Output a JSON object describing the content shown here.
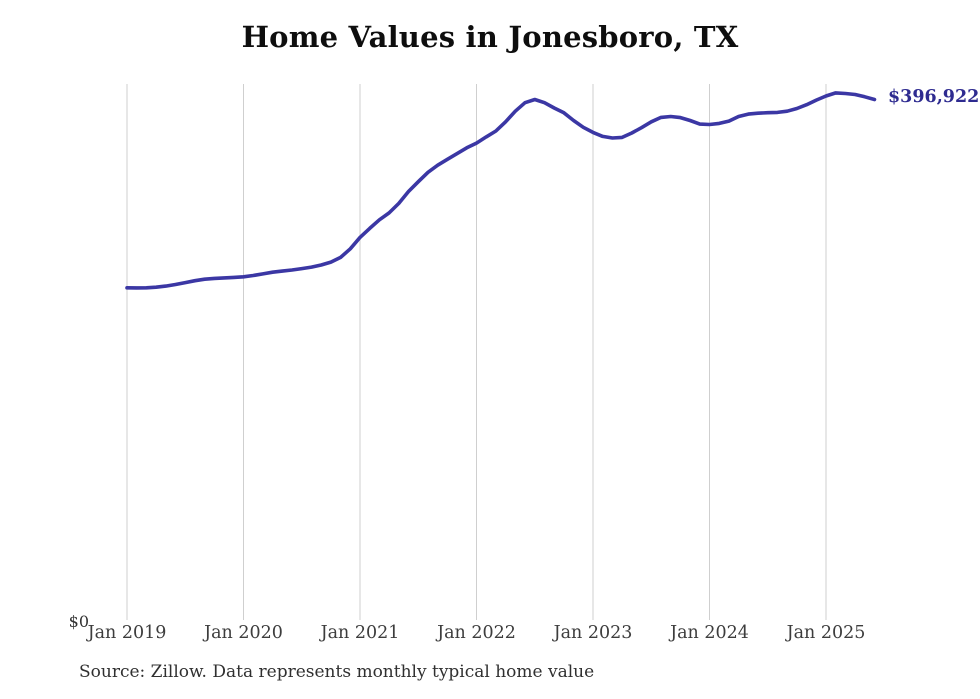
{
  "footer": {
    "source_note": "Source: Zillow. Data represents monthly typical home value"
  },
  "colors": {
    "background": "#ffffff",
    "line": "#3b37a4",
    "end_label": "#2e2b90",
    "gridline": "#cfcfcf",
    "tick_text": "#3d3d3d",
    "title_text": "#0e0e0e"
  },
  "chart_data": {
    "type": "line",
    "title": "Home Values in Jonesboro, TX",
    "xlabel": "",
    "ylabel": "",
    "grid": "vertical-only",
    "legend": "none",
    "line_color": "#3b37a4",
    "gridline_color": "#cfcfcf",
    "end_label": "$396,922",
    "final_value": 396922,
    "y_axis": {
      "min": 0,
      "max": 410000,
      "min_label": "$0"
    },
    "x_tick_labels": [
      "Jan 2019",
      "Jan 2020",
      "Jan 2021",
      "Jan 2022",
      "Jan 2023",
      "Jan 2024",
      "Jan 2025"
    ],
    "x_tick_month_indices": [
      0,
      12,
      24,
      36,
      48,
      60,
      72
    ],
    "x": [
      "Jan 2019",
      "Feb 2019",
      "Mar 2019",
      "Apr 2019",
      "May 2019",
      "Jun 2019",
      "Jul 2019",
      "Aug 2019",
      "Sep 2019",
      "Oct 2019",
      "Nov 2019",
      "Dec 2019",
      "Jan 2020",
      "Feb 2020",
      "Mar 2020",
      "Apr 2020",
      "May 2020",
      "Jun 2020",
      "Jul 2020",
      "Aug 2020",
      "Sep 2020",
      "Oct 2020",
      "Nov 2020",
      "Dec 2020",
      "Jan 2021",
      "Feb 2021",
      "Mar 2021",
      "Apr 2021",
      "May 2021",
      "Jun 2021",
      "Jul 2021",
      "Aug 2021",
      "Sep 2021",
      "Oct 2021",
      "Nov 2021",
      "Dec 2021",
      "Jan 2022",
      "Feb 2022",
      "Mar 2022",
      "Apr 2022",
      "May 2022",
      "Jun 2022",
      "Jul 2022",
      "Aug 2022",
      "Sep 2022",
      "Oct 2022",
      "Nov 2022",
      "Dec 2022",
      "Jan 2023",
      "Feb 2023",
      "Mar 2023",
      "Apr 2023",
      "May 2023",
      "Jun 2023",
      "Jul 2023",
      "Aug 2023",
      "Sep 2023",
      "Oct 2023",
      "Nov 2023",
      "Dec 2023",
      "Jan 2024",
      "Feb 2024",
      "Mar 2024",
      "Apr 2024",
      "May 2024",
      "Jun 2024",
      "Jul 2024",
      "Aug 2024",
      "Sep 2024",
      "Oct 2024",
      "Nov 2024",
      "Dec 2024",
      "Jan 2025",
      "Feb 2025",
      "Mar 2025",
      "Apr 2025",
      "May 2025",
      "Jun 2025"
    ],
    "values": [
      253900,
      253800,
      253900,
      254300,
      255200,
      256400,
      257800,
      259300,
      260400,
      261000,
      261400,
      261800,
      262200,
      263200,
      264400,
      265700,
      266600,
      267400,
      268500,
      269600,
      271200,
      273400,
      277000,
      283500,
      292200,
      299000,
      305500,
      310800,
      318000,
      327000,
      334500,
      341600,
      347000,
      351500,
      355800,
      360200,
      363800,
      368500,
      373000,
      380000,
      388000,
      394500,
      396900,
      394500,
      390500,
      386800,
      381000,
      375800,
      371900,
      368900,
      367700,
      368100,
      371500,
      375500,
      380000,
      383300,
      384000,
      383200,
      381000,
      378200,
      377900,
      378800,
      380500,
      384000,
      385800,
      386500,
      386900,
      387100,
      388000,
      390100,
      393000,
      396500,
      399600,
      401900,
      401500,
      400700,
      399000,
      396922
    ]
  }
}
